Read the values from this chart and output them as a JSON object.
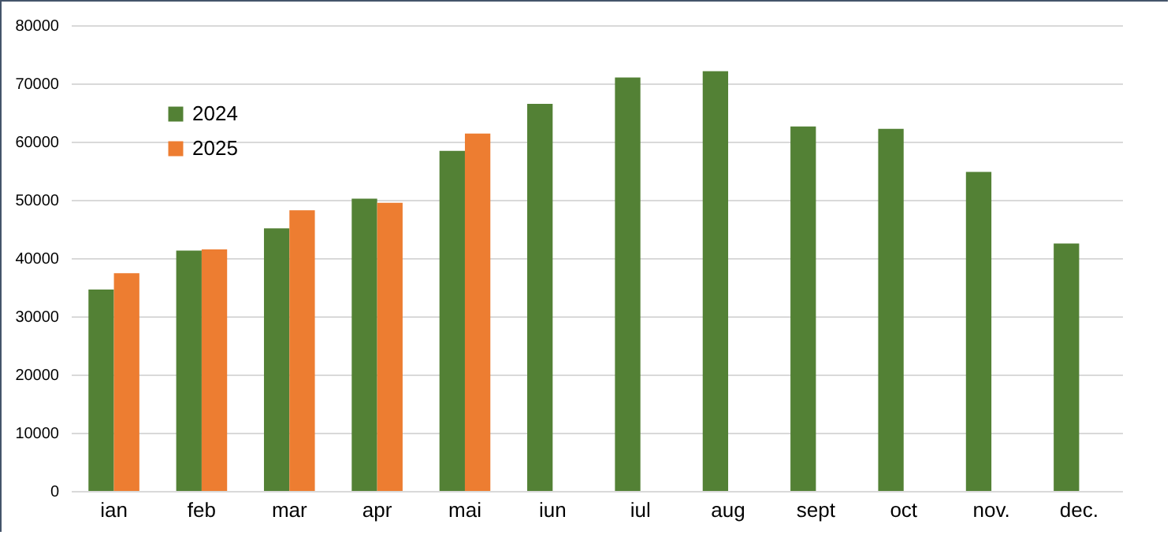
{
  "chart_data": {
    "type": "bar",
    "categories": [
      "ian",
      "feb",
      "mar",
      "apr",
      "mai",
      "iun",
      "iul",
      "aug",
      "sept",
      "oct",
      "nov.",
      "dec."
    ],
    "series": [
      {
        "name": "2024",
        "color": "#538135",
        "values": [
          34600,
          41300,
          45100,
          50200,
          58400,
          66500,
          71000,
          72100,
          62600,
          62200,
          54800,
          42500
        ]
      },
      {
        "name": "2025",
        "color": "#ed7d31",
        "values": [
          37400,
          41500,
          48200,
          49500,
          61400,
          null,
          null,
          null,
          null,
          null,
          null,
          null
        ]
      }
    ],
    "ylim": [
      0,
      80000
    ],
    "yticks": [
      0,
      10000,
      20000,
      30000,
      40000,
      50000,
      60000,
      70000,
      80000
    ],
    "grid": "y",
    "legend": "top left"
  }
}
